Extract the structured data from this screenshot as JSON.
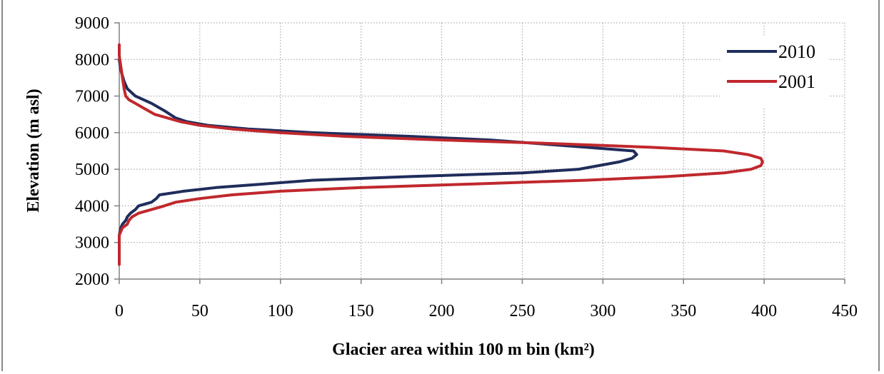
{
  "chart_data": {
    "type": "line",
    "xlabel": "Glacier area within 100 m bin (km²)",
    "ylabel": "Elevation (m asl)",
    "xlim": [
      0,
      450
    ],
    "ylim": [
      2000,
      9000
    ],
    "xticks": [
      0,
      50,
      100,
      150,
      200,
      250,
      300,
      350,
      400,
      450
    ],
    "yticks": [
      2000,
      3000,
      4000,
      5000,
      6000,
      7000,
      8000,
      9000
    ],
    "grid": true,
    "legend_position": "top-right",
    "series": [
      {
        "name": "2010",
        "color": "#1f2d5c",
        "points": [
          [
            0,
            3200
          ],
          [
            1,
            3400
          ],
          [
            2,
            3500
          ],
          [
            4,
            3600
          ],
          [
            5,
            3700
          ],
          [
            7,
            3800
          ],
          [
            10,
            3900
          ],
          [
            12,
            4000
          ],
          [
            20,
            4100
          ],
          [
            23,
            4200
          ],
          [
            25,
            4300
          ],
          [
            40,
            4400
          ],
          [
            60,
            4500
          ],
          [
            90,
            4600
          ],
          [
            120,
            4700
          ],
          [
            180,
            4800
          ],
          [
            250,
            4900
          ],
          [
            285,
            5000
          ],
          [
            310,
            5200
          ],
          [
            318,
            5300
          ],
          [
            321,
            5400
          ],
          [
            319,
            5500
          ],
          [
            290,
            5600
          ],
          [
            230,
            5800
          ],
          [
            180,
            5900
          ],
          [
            120,
            6000
          ],
          [
            80,
            6100
          ],
          [
            55,
            6200
          ],
          [
            42,
            6300
          ],
          [
            35,
            6400
          ],
          [
            28,
            6600
          ],
          [
            20,
            6800
          ],
          [
            15,
            6900
          ],
          [
            10,
            7000
          ],
          [
            5,
            7200
          ],
          [
            3,
            7400
          ],
          [
            1,
            7700
          ],
          [
            0,
            8000
          ]
        ]
      },
      {
        "name": "2001",
        "color": "#c0282d",
        "points": [
          [
            0,
            2400
          ],
          [
            0,
            3000
          ],
          [
            0,
            3200
          ],
          [
            2,
            3400
          ],
          [
            5,
            3500
          ],
          [
            6,
            3600
          ],
          [
            8,
            3700
          ],
          [
            12,
            3800
          ],
          [
            20,
            3900
          ],
          [
            28,
            4000
          ],
          [
            35,
            4100
          ],
          [
            50,
            4200
          ],
          [
            70,
            4300
          ],
          [
            100,
            4400
          ],
          [
            150,
            4500
          ],
          [
            220,
            4600
          ],
          [
            290,
            4700
          ],
          [
            340,
            4800
          ],
          [
            375,
            4900
          ],
          [
            392,
            5000
          ],
          [
            398,
            5100
          ],
          [
            399,
            5200
          ],
          [
            398,
            5300
          ],
          [
            390,
            5400
          ],
          [
            375,
            5500
          ],
          [
            330,
            5600
          ],
          [
            270,
            5700
          ],
          [
            200,
            5800
          ],
          [
            140,
            5900
          ],
          [
            100,
            6000
          ],
          [
            70,
            6100
          ],
          [
            50,
            6200
          ],
          [
            38,
            6300
          ],
          [
            30,
            6400
          ],
          [
            22,
            6500
          ],
          [
            18,
            6600
          ],
          [
            14,
            6700
          ],
          [
            10,
            6800
          ],
          [
            6,
            6900
          ],
          [
            4,
            7000
          ],
          [
            3,
            7200
          ],
          [
            2,
            7500
          ],
          [
            1,
            7800
          ],
          [
            0,
            8100
          ],
          [
            0,
            8400
          ]
        ]
      }
    ]
  }
}
